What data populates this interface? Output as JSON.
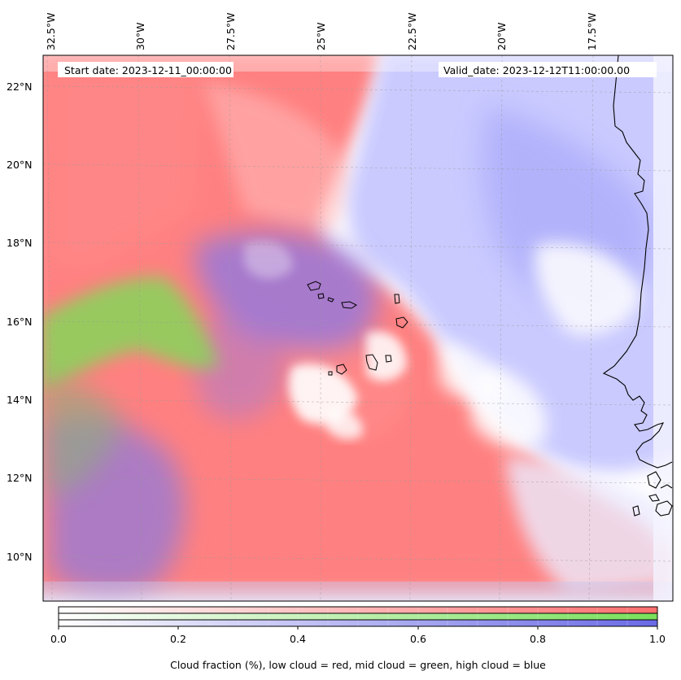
{
  "map": {
    "start_date": "Start date: 2023-12-11_00:00:00",
    "valid_date": "Valid_date: 2023-12-12T11:00:00.00",
    "lon_labels": [
      "32.5°W",
      "30°W",
      "27.5°W",
      "25°W",
      "22.5°W",
      "20°W",
      "17.5°W"
    ],
    "lat_labels": [
      "22°N",
      "20°N",
      "18°N",
      "16°N",
      "14°N",
      "12°N",
      "10°N"
    ],
    "region": "Cabo Verde / West African coast",
    "layers": [
      {
        "name": "low cloud",
        "color": "#ff6e6e"
      },
      {
        "name": "mid cloud",
        "color": "#78dc50"
      },
      {
        "name": "high cloud",
        "color": "#6e6ef0"
      }
    ]
  },
  "colorbar": {
    "ticks": [
      "0.0",
      "0.2",
      "0.4",
      "0.6",
      "0.8",
      "1.0"
    ],
    "label": "Cloud fraction (%), low cloud = red, mid cloud = green, high cloud = blue",
    "rows": [
      {
        "name": "low cloud",
        "color": "#ff6e6e"
      },
      {
        "name": "mid cloud",
        "color": "#78e05a"
      },
      {
        "name": "high cloud",
        "color": "#6a6ae6"
      }
    ]
  }
}
